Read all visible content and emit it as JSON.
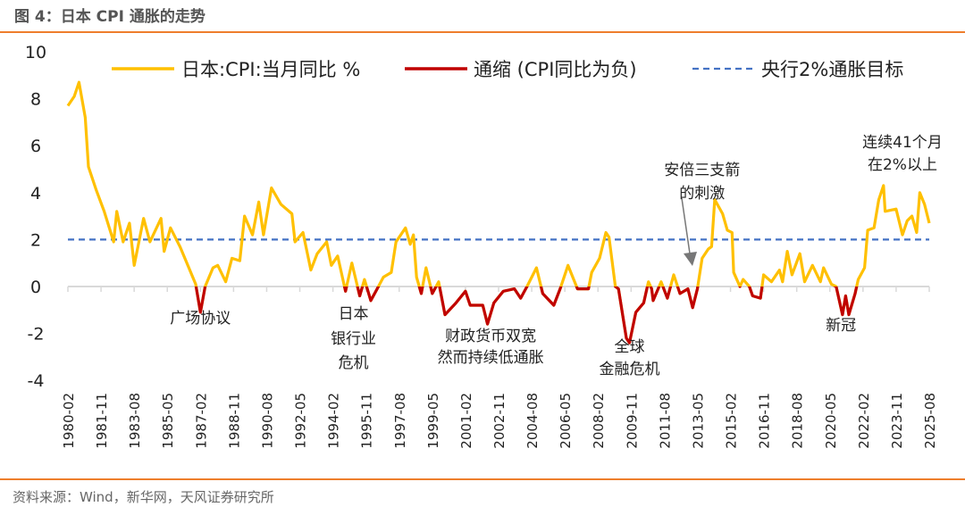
{
  "header": {
    "title": "图 4：日本 CPI 通胀的走势"
  },
  "footer": {
    "source": "资料来源：Wind，新华网，天风证券研究所"
  },
  "colors": {
    "cpi": "#FFC000",
    "deflation": "#C00000",
    "target": "#4472C4",
    "accent": "#ED7D31",
    "axis": "#D9D9D9"
  },
  "chart_data": {
    "type": "line",
    "ylim": [
      -4,
      10
    ],
    "yticks": [
      -4,
      -2,
      0,
      2,
      4,
      6,
      8,
      10
    ],
    "xlim": [
      "1980-02",
      "2025-08"
    ],
    "xticks": [
      "1980-02",
      "1981-11",
      "1983-08",
      "1985-05",
      "1987-02",
      "1988-11",
      "1990-08",
      "1992-05",
      "1994-02",
      "1995-11",
      "1997-08",
      "1999-05",
      "2001-02",
      "2002-11",
      "2004-08",
      "2006-05",
      "2008-02",
      "2009-11",
      "2011-08",
      "2013-05",
      "2015-02",
      "2016-11",
      "2018-08",
      "2020-05",
      "2022-02",
      "2023-11",
      "2025-08"
    ],
    "grid": false,
    "legend_placement": "top",
    "series": [
      {
        "name": "日本:CPI:当月同比 %",
        "color": "#FFC000",
        "x": [
          "1980-02",
          "1980-06",
          "1980-09",
          "1981-01",
          "1981-03",
          "1981-08",
          "1982-01",
          "1982-07",
          "1982-09",
          "1983-01",
          "1983-05",
          "1983-08",
          "1984-02",
          "1984-06",
          "1985-01",
          "1985-03",
          "1985-07",
          "1986-01",
          "1986-06",
          "1986-11",
          "1987-02",
          "1987-05",
          "1987-10",
          "1988-01",
          "1988-06",
          "1988-10",
          "1989-03",
          "1989-06",
          "1989-11",
          "1990-03",
          "1990-06",
          "1990-11",
          "1991-05",
          "1991-12",
          "1992-02",
          "1992-07",
          "1992-12",
          "1993-04",
          "1993-10",
          "1994-01",
          "1994-05",
          "1994-10",
          "1995-02",
          "1995-07",
          "1995-10",
          "1996-02",
          "1996-06",
          "1996-10",
          "1997-03",
          "1997-06",
          "1997-12",
          "1998-03",
          "1998-05",
          "1998-07",
          "1998-10",
          "1999-01",
          "1999-05",
          "1999-09",
          "2000-01",
          "2000-08",
          "2001-02",
          "2001-05",
          "2002-01",
          "2002-04",
          "2002-08",
          "2003-02",
          "2003-09",
          "2004-01",
          "2004-05",
          "2004-11",
          "2005-03",
          "2005-10",
          "2006-02",
          "2006-07",
          "2007-01",
          "2007-08",
          "2007-10",
          "2008-03",
          "2008-07",
          "2008-09",
          "2009-01",
          "2009-03",
          "2009-08",
          "2009-10",
          "2010-02",
          "2010-07",
          "2010-10",
          "2010-12",
          "2011-01",
          "2011-06",
          "2011-10",
          "2012-02",
          "2012-06",
          "2012-11",
          "2013-02",
          "2013-05",
          "2013-08",
          "2013-12",
          "2014-02",
          "2014-04",
          "2014-09",
          "2014-12",
          "2015-03",
          "2015-04",
          "2015-08",
          "2015-10",
          "2016-02",
          "2016-04",
          "2016-09",
          "2016-11",
          "2017-04",
          "2017-09",
          "2017-11",
          "2018-02",
          "2018-05",
          "2018-10",
          "2019-01",
          "2019-06",
          "2019-11",
          "2020-01",
          "2020-06",
          "2020-09",
          "2021-01",
          "2021-03",
          "2021-05",
          "2021-09",
          "2021-11",
          "2022-03",
          "2022-05",
          "2022-09",
          "2022-12",
          "2023-03",
          "2023-04",
          "2023-11",
          "2024-03",
          "2024-06",
          "2024-09",
          "2024-12",
          "2025-02",
          "2025-05",
          "2025-08"
        ],
        "values": [
          7.7,
          8.1,
          8.7,
          7.2,
          5.1,
          4.1,
          3.2,
          1.9,
          3.2,
          1.9,
          2.7,
          0.9,
          2.9,
          1.9,
          2.9,
          1.5,
          2.5,
          1.7,
          0.9,
          0.1,
          -1.1,
          0.0,
          0.8,
          0.9,
          0.2,
          1.2,
          1.1,
          3.0,
          2.2,
          3.6,
          2.2,
          4.2,
          3.5,
          3.1,
          1.9,
          2.3,
          0.7,
          1.4,
          1.9,
          0.9,
          1.3,
          -0.2,
          1.0,
          -0.4,
          0.3,
          -0.6,
          -0.1,
          0.4,
          0.6,
          1.9,
          2.5,
          1.8,
          2.2,
          0.4,
          -0.3,
          0.8,
          -0.3,
          0.2,
          -1.2,
          -0.7,
          -0.2,
          -0.8,
          -0.8,
          -1.6,
          -0.7,
          -0.2,
          -0.1,
          -0.5,
          0.0,
          0.8,
          -0.3,
          -0.8,
          -0.1,
          0.9,
          -0.1,
          -0.1,
          0.6,
          1.2,
          2.3,
          2.1,
          0.0,
          -0.1,
          -2.2,
          -2.4,
          -1.1,
          -0.7,
          0.2,
          -0.1,
          -0.6,
          0.2,
          -0.5,
          0.5,
          -0.3,
          -0.1,
          -0.9,
          -0.1,
          1.2,
          1.6,
          1.7,
          3.7,
          3.1,
          2.4,
          2.3,
          0.6,
          0.0,
          0.3,
          0.0,
          -0.4,
          -0.5,
          0.5,
          0.2,
          0.7,
          0.2,
          1.5,
          0.5,
          1.4,
          0.2,
          0.9,
          0.2,
          0.8,
          0.1,
          0.0,
          -1.2,
          -0.4,
          -1.2,
          -0.3,
          0.3,
          0.8,
          2.4,
          2.5,
          3.7,
          4.3,
          3.2,
          3.3,
          2.2,
          2.8,
          3.0,
          2.3,
          4.0,
          3.5,
          2.7
        ]
      },
      {
        "name": "通缩 (CPI同比为负)",
        "color": "#C00000"
      },
      {
        "name": "央行2%通胀目标",
        "color": "#4472C4",
        "style": "dashed",
        "value": 2
      }
    ],
    "annotations": [
      {
        "text": [
          "广场协议"
        ],
        "x": "1987-02"
      },
      {
        "text": [
          "日本",
          "银行业",
          "危机"
        ],
        "x": "1995-03"
      },
      {
        "text": [
          "财政货币双宽",
          "然而持续低通胀"
        ],
        "x": "2002-06"
      },
      {
        "text": [
          "全球",
          "金融危机"
        ],
        "x": "2009-10"
      },
      {
        "text": [
          "安倍三支箭",
          "的刺激"
        ],
        "x": "2013-08",
        "arrow": true
      },
      {
        "text": [
          "新冠"
        ],
        "x": "2020-12"
      },
      {
        "text": [
          "连续41个月",
          "在2%以上"
        ],
        "x": "2024-03"
      }
    ]
  }
}
